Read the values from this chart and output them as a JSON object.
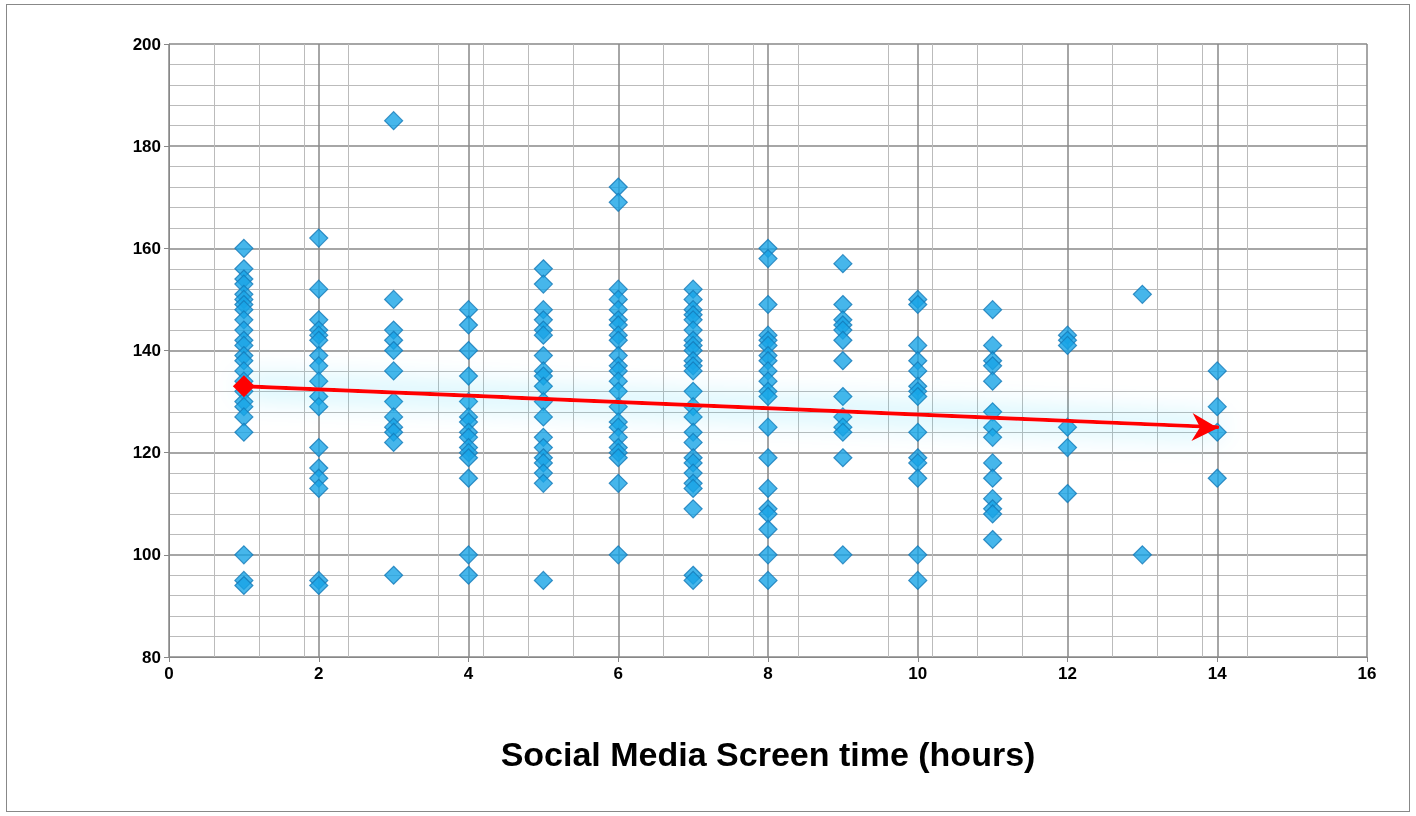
{
  "chart_data": {
    "type": "scatter",
    "xlabel": "Social Media Screen time (hours)",
    "xlim": [
      0,
      16
    ],
    "xticks": [
      0,
      2,
      4,
      6,
      8,
      10,
      12,
      14,
      16
    ],
    "ylim": [
      80,
      200
    ],
    "yticks": [
      80,
      100,
      120,
      140,
      160,
      180,
      200
    ],
    "grid": true,
    "marker": "diamond",
    "series": [
      {
        "color": "#18a4e6",
        "x": [
          1,
          1,
          1,
          1,
          1,
          1,
          1,
          1,
          1,
          1,
          1,
          1,
          1,
          1,
          1,
          1,
          1,
          1,
          1,
          1,
          1,
          1,
          1,
          1,
          2,
          2,
          2,
          2,
          2,
          2,
          2,
          2,
          2,
          2,
          2,
          2,
          2,
          2,
          2,
          2,
          2,
          3,
          3,
          3,
          3,
          3,
          3,
          3,
          3,
          3,
          3,
          3,
          3,
          4,
          4,
          4,
          4,
          4,
          4,
          4,
          4,
          4,
          4,
          4,
          4,
          4,
          4,
          4,
          5,
          5,
          5,
          5,
          5,
          5,
          5,
          5,
          5,
          5,
          5,
          5,
          5,
          5,
          5,
          5,
          5,
          5,
          5,
          6,
          6,
          6,
          6,
          6,
          6,
          6,
          6,
          6,
          6,
          6,
          6,
          6,
          6,
          6,
          6,
          6,
          6,
          6,
          6,
          6,
          6,
          6,
          7,
          7,
          7,
          7,
          7,
          7,
          7,
          7,
          7,
          7,
          7,
          7,
          7,
          7,
          7,
          7,
          7,
          7,
          7,
          7,
          7,
          7,
          7,
          7,
          7,
          8,
          8,
          8,
          8,
          8,
          8,
          8,
          8,
          8,
          8,
          8,
          8,
          8,
          8,
          8,
          8,
          8,
          8,
          8,
          8,
          9,
          9,
          9,
          9,
          9,
          9,
          9,
          9,
          9,
          9,
          9,
          9,
          9,
          10,
          10,
          10,
          10,
          10,
          10,
          10,
          10,
          10,
          10,
          10,
          10,
          10,
          10,
          11,
          11,
          11,
          11,
          11,
          11,
          11,
          11,
          11,
          11,
          11,
          11,
          11,
          11,
          12,
          12,
          12,
          12,
          12,
          12,
          13,
          13,
          14,
          14,
          14,
          14
        ],
        "values": [
          160,
          156,
          154,
          153,
          151,
          150,
          149,
          148,
          146,
          144,
          142,
          141,
          139,
          138,
          136,
          134,
          132,
          130,
          129,
          127,
          124,
          100,
          95,
          94,
          162,
          152,
          146,
          144,
          143,
          142,
          139,
          137,
          134,
          131,
          129,
          121,
          117,
          115,
          113,
          95,
          94,
          185,
          150,
          144,
          142,
          140,
          136,
          130,
          127,
          125,
          124,
          122,
          96,
          148,
          145,
          140,
          135,
          130,
          127,
          126,
          124,
          123,
          121,
          120,
          119,
          115,
          100,
          96,
          156,
          153,
          148,
          146,
          144,
          143,
          139,
          136,
          135,
          133,
          130,
          127,
          123,
          121,
          119,
          118,
          116,
          114,
          95,
          172,
          169,
          152,
          150,
          148,
          146,
          145,
          143,
          142,
          139,
          137,
          136,
          134,
          132,
          129,
          126,
          125,
          123,
          121,
          120,
          119,
          114,
          100,
          152,
          150,
          148,
          147,
          146,
          144,
          142,
          141,
          140,
          138,
          137,
          136,
          132,
          129,
          127,
          124,
          122,
          119,
          118,
          116,
          114,
          113,
          109,
          96,
          95,
          160,
          158,
          149,
          143,
          142,
          141,
          139,
          138,
          136,
          134,
          132,
          131,
          125,
          119,
          113,
          109,
          108,
          105,
          100,
          95,
          157,
          149,
          146,
          145,
          144,
          142,
          138,
          131,
          127,
          125,
          124,
          119,
          100,
          150,
          149,
          141,
          138,
          136,
          133,
          132,
          131,
          124,
          119,
          118,
          115,
          100,
          95,
          148,
          141,
          138,
          137,
          134,
          128,
          125,
          123,
          118,
          115,
          111,
          109,
          108,
          103,
          143,
          142,
          141,
          125,
          121,
          112,
          151,
          100,
          136,
          129,
          124,
          115
        ]
      },
      {
        "type": "line",
        "color": "#ff0000",
        "marker": "diamond",
        "x": [
          1,
          14
        ],
        "values": [
          133,
          125
        ]
      }
    ]
  }
}
